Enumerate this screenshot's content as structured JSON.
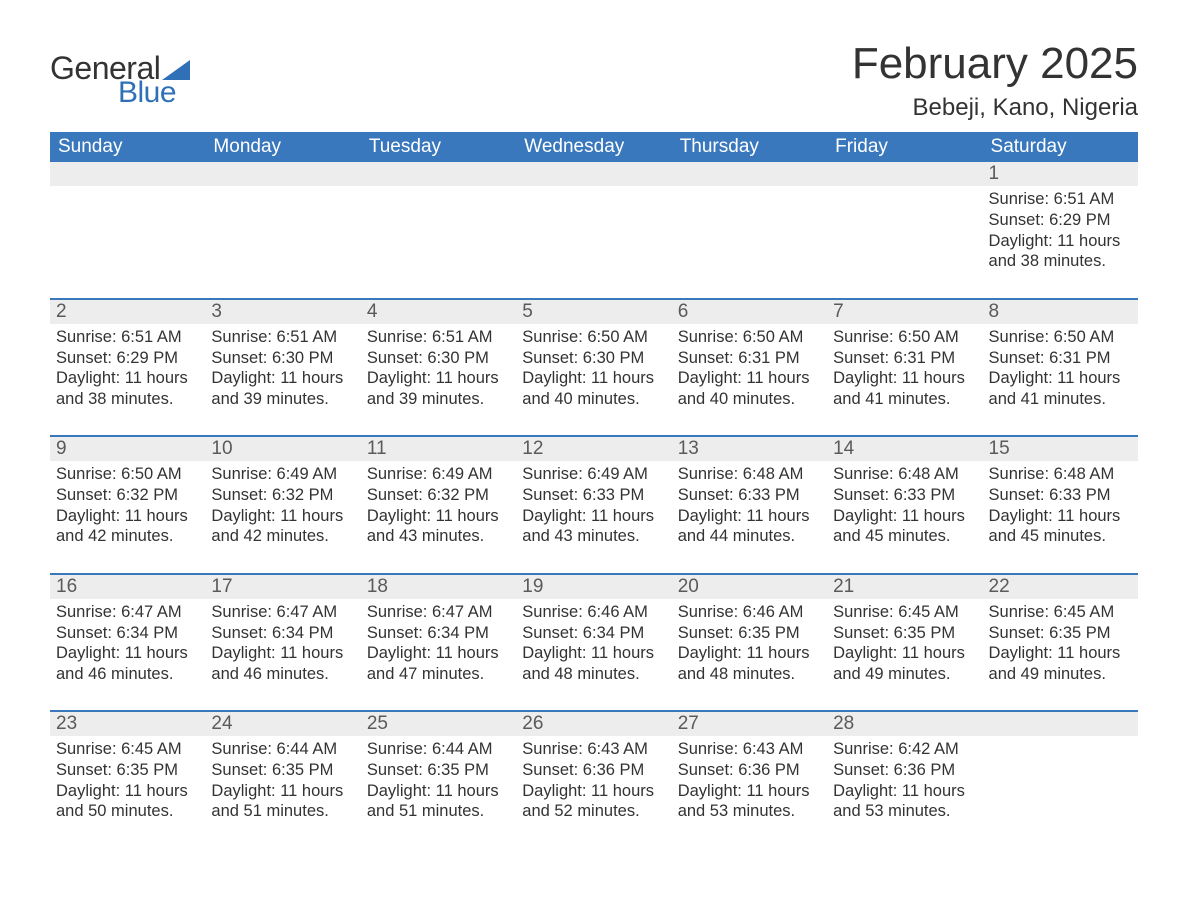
{
  "colors": {
    "header_bg": "#3a78bd",
    "header_text": "#ffffff",
    "row_separator": "#3a78bd",
    "daynum_bg": "#ededed",
    "body_text": "#333333",
    "logo_blue": "#2f70b7",
    "page_bg": "#ffffff"
  },
  "typography": {
    "title_fontsize": 44,
    "location_fontsize": 24,
    "dayhead_fontsize": 19,
    "daynum_fontsize": 19,
    "body_fontsize": 16.5,
    "font_family": "Arial"
  },
  "logo": {
    "text_general": "General",
    "text_blue": "Blue"
  },
  "title": "February 2025",
  "location": "Bebeji, Kano, Nigeria",
  "day_labels": [
    "Sunday",
    "Monday",
    "Tuesday",
    "Wednesday",
    "Thursday",
    "Friday",
    "Saturday"
  ],
  "weeks": [
    [
      null,
      null,
      null,
      null,
      null,
      null,
      {
        "n": "1",
        "sunrise": "Sunrise: 6:51 AM",
        "sunset": "Sunset: 6:29 PM",
        "dl1": "Daylight: 11 hours",
        "dl2": "and 38 minutes."
      }
    ],
    [
      {
        "n": "2",
        "sunrise": "Sunrise: 6:51 AM",
        "sunset": "Sunset: 6:29 PM",
        "dl1": "Daylight: 11 hours",
        "dl2": "and 38 minutes."
      },
      {
        "n": "3",
        "sunrise": "Sunrise: 6:51 AM",
        "sunset": "Sunset: 6:30 PM",
        "dl1": "Daylight: 11 hours",
        "dl2": "and 39 minutes."
      },
      {
        "n": "4",
        "sunrise": "Sunrise: 6:51 AM",
        "sunset": "Sunset: 6:30 PM",
        "dl1": "Daylight: 11 hours",
        "dl2": "and 39 minutes."
      },
      {
        "n": "5",
        "sunrise": "Sunrise: 6:50 AM",
        "sunset": "Sunset: 6:30 PM",
        "dl1": "Daylight: 11 hours",
        "dl2": "and 40 minutes."
      },
      {
        "n": "6",
        "sunrise": "Sunrise: 6:50 AM",
        "sunset": "Sunset: 6:31 PM",
        "dl1": "Daylight: 11 hours",
        "dl2": "and 40 minutes."
      },
      {
        "n": "7",
        "sunrise": "Sunrise: 6:50 AM",
        "sunset": "Sunset: 6:31 PM",
        "dl1": "Daylight: 11 hours",
        "dl2": "and 41 minutes."
      },
      {
        "n": "8",
        "sunrise": "Sunrise: 6:50 AM",
        "sunset": "Sunset: 6:31 PM",
        "dl1": "Daylight: 11 hours",
        "dl2": "and 41 minutes."
      }
    ],
    [
      {
        "n": "9",
        "sunrise": "Sunrise: 6:50 AM",
        "sunset": "Sunset: 6:32 PM",
        "dl1": "Daylight: 11 hours",
        "dl2": "and 42 minutes."
      },
      {
        "n": "10",
        "sunrise": "Sunrise: 6:49 AM",
        "sunset": "Sunset: 6:32 PM",
        "dl1": "Daylight: 11 hours",
        "dl2": "and 42 minutes."
      },
      {
        "n": "11",
        "sunrise": "Sunrise: 6:49 AM",
        "sunset": "Sunset: 6:32 PM",
        "dl1": "Daylight: 11 hours",
        "dl2": "and 43 minutes."
      },
      {
        "n": "12",
        "sunrise": "Sunrise: 6:49 AM",
        "sunset": "Sunset: 6:33 PM",
        "dl1": "Daylight: 11 hours",
        "dl2": "and 43 minutes."
      },
      {
        "n": "13",
        "sunrise": "Sunrise: 6:48 AM",
        "sunset": "Sunset: 6:33 PM",
        "dl1": "Daylight: 11 hours",
        "dl2": "and 44 minutes."
      },
      {
        "n": "14",
        "sunrise": "Sunrise: 6:48 AM",
        "sunset": "Sunset: 6:33 PM",
        "dl1": "Daylight: 11 hours",
        "dl2": "and 45 minutes."
      },
      {
        "n": "15",
        "sunrise": "Sunrise: 6:48 AM",
        "sunset": "Sunset: 6:33 PM",
        "dl1": "Daylight: 11 hours",
        "dl2": "and 45 minutes."
      }
    ],
    [
      {
        "n": "16",
        "sunrise": "Sunrise: 6:47 AM",
        "sunset": "Sunset: 6:34 PM",
        "dl1": "Daylight: 11 hours",
        "dl2": "and 46 minutes."
      },
      {
        "n": "17",
        "sunrise": "Sunrise: 6:47 AM",
        "sunset": "Sunset: 6:34 PM",
        "dl1": "Daylight: 11 hours",
        "dl2": "and 46 minutes."
      },
      {
        "n": "18",
        "sunrise": "Sunrise: 6:47 AM",
        "sunset": "Sunset: 6:34 PM",
        "dl1": "Daylight: 11 hours",
        "dl2": "and 47 minutes."
      },
      {
        "n": "19",
        "sunrise": "Sunrise: 6:46 AM",
        "sunset": "Sunset: 6:34 PM",
        "dl1": "Daylight: 11 hours",
        "dl2": "and 48 minutes."
      },
      {
        "n": "20",
        "sunrise": "Sunrise: 6:46 AM",
        "sunset": "Sunset: 6:35 PM",
        "dl1": "Daylight: 11 hours",
        "dl2": "and 48 minutes."
      },
      {
        "n": "21",
        "sunrise": "Sunrise: 6:45 AM",
        "sunset": "Sunset: 6:35 PM",
        "dl1": "Daylight: 11 hours",
        "dl2": "and 49 minutes."
      },
      {
        "n": "22",
        "sunrise": "Sunrise: 6:45 AM",
        "sunset": "Sunset: 6:35 PM",
        "dl1": "Daylight: 11 hours",
        "dl2": "and 49 minutes."
      }
    ],
    [
      {
        "n": "23",
        "sunrise": "Sunrise: 6:45 AM",
        "sunset": "Sunset: 6:35 PM",
        "dl1": "Daylight: 11 hours",
        "dl2": "and 50 minutes."
      },
      {
        "n": "24",
        "sunrise": "Sunrise: 6:44 AM",
        "sunset": "Sunset: 6:35 PM",
        "dl1": "Daylight: 11 hours",
        "dl2": "and 51 minutes."
      },
      {
        "n": "25",
        "sunrise": "Sunrise: 6:44 AM",
        "sunset": "Sunset: 6:35 PM",
        "dl1": "Daylight: 11 hours",
        "dl2": "and 51 minutes."
      },
      {
        "n": "26",
        "sunrise": "Sunrise: 6:43 AM",
        "sunset": "Sunset: 6:36 PM",
        "dl1": "Daylight: 11 hours",
        "dl2": "and 52 minutes."
      },
      {
        "n": "27",
        "sunrise": "Sunrise: 6:43 AM",
        "sunset": "Sunset: 6:36 PM",
        "dl1": "Daylight: 11 hours",
        "dl2": "and 53 minutes."
      },
      {
        "n": "28",
        "sunrise": "Sunrise: 6:42 AM",
        "sunset": "Sunset: 6:36 PM",
        "dl1": "Daylight: 11 hours",
        "dl2": "and 53 minutes."
      },
      null
    ]
  ]
}
